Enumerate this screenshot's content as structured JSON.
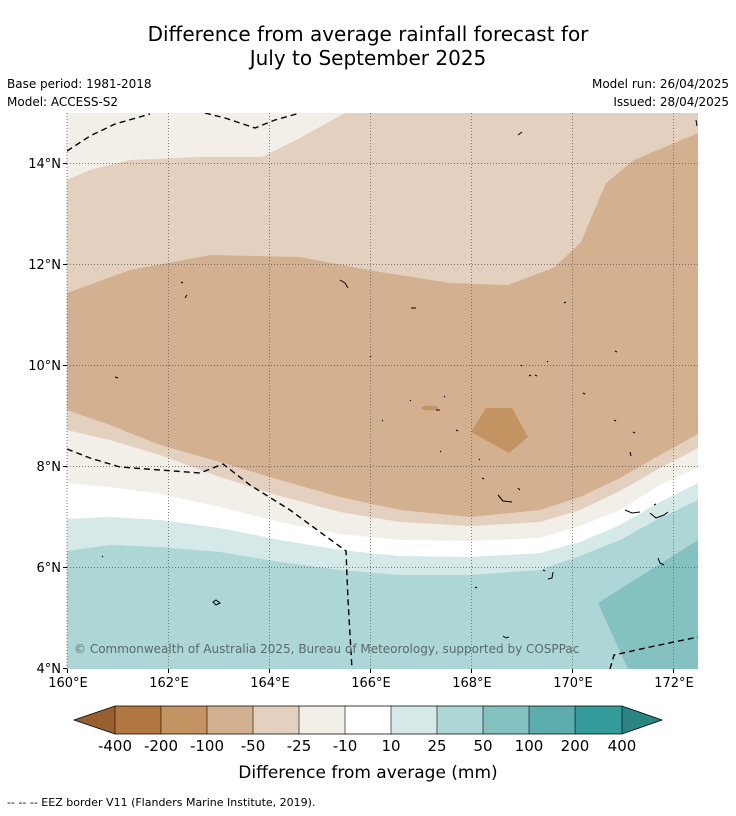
{
  "title_line1": "Difference from average rainfall forecast for",
  "title_line2": "July to September 2025",
  "base_period": "Base period: 1981-2018",
  "model": "Model: ACCESS-S2",
  "model_run": "Model run: 26/04/2025",
  "issued": "Issued: 28/04/2025",
  "copyright": "© Commonwealth of Australia 2025, Bureau of Meteorology, supported by COSPPac",
  "map": {
    "lon_range": [
      160,
      172.5
    ],
    "lat_range": [
      4,
      15
    ],
    "lon_ticks": [
      "160°E",
      "162°E",
      "164°E",
      "166°E",
      "168°E",
      "170°E",
      "172°E"
    ],
    "lat_ticks": [
      "4°N",
      "6°N",
      "8°N",
      "10°N",
      "12°N",
      "14°N"
    ],
    "grid": "dotted"
  },
  "legend": {
    "title": "Difference from average (mm)",
    "ticks": [
      "-400",
      "-200",
      "-100",
      "-50",
      "-25",
      "-10",
      "10",
      "25",
      "50",
      "100",
      "200",
      "400"
    ],
    "colors": [
      "#9a5f2e",
      "#b07840",
      "#c39462",
      "#d3b190",
      "#e3d0bf",
      "#f2eee8",
      "#ffffff",
      "#d5e9e8",
      "#add6d6",
      "#84c2c1",
      "#5caeae",
      "#339b9a",
      "#2a8482"
    ]
  },
  "footnote": "-- -- -- EEZ border V11 (Flanders Marine Institute, 2019)."
}
